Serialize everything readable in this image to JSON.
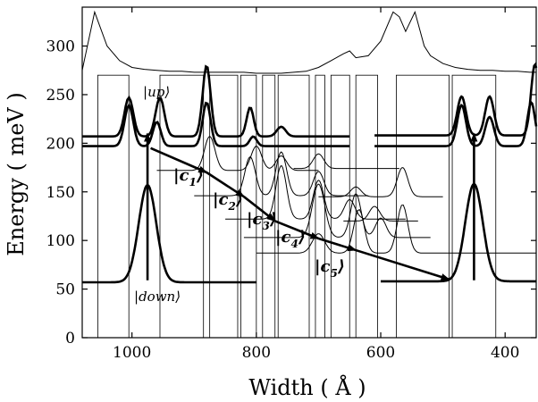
{
  "chart_data": {
    "type": "line",
    "title": "",
    "xlabel": "Width ( Å )",
    "ylabel": "Energy ( meV )",
    "xlim": [
      1080,
      350
    ],
    "ylim": [
      0,
      340
    ],
    "x_reversed": true,
    "xticks": [
      1000,
      800,
      600,
      400
    ],
    "yticks": [
      0,
      50,
      100,
      150,
      200,
      250,
      300
    ],
    "grid": false,
    "legend": "none",
    "potential_profile": {
      "bottom": 0,
      "top": 270,
      "wells": [
        [
          1055,
          1005
        ],
        [
          955,
          885
        ],
        [
          875,
          830
        ],
        [
          825,
          800
        ],
        [
          790,
          770
        ],
        [
          765,
          715
        ],
        [
          705,
          690
        ],
        [
          680,
          650
        ],
        [
          640,
          605
        ],
        [
          575,
          490
        ],
        [
          485,
          415
        ]
      ]
    },
    "transmission_spectrum": {
      "x": [
        1080,
        1060,
        1040,
        1020,
        1000,
        980,
        960,
        940,
        920,
        900,
        880,
        860,
        840,
        820,
        800,
        780,
        760,
        740,
        720,
        700,
        680,
        660,
        650,
        640,
        620,
        600,
        580,
        570,
        560,
        545,
        530,
        520,
        500,
        480,
        460,
        440,
        420,
        400,
        380,
        360,
        350
      ],
      "y": [
        275,
        335,
        300,
        285,
        278,
        276,
        275,
        274,
        274,
        273,
        273,
        273,
        273,
        273,
        272,
        272,
        272,
        273,
        274,
        278,
        285,
        292,
        295,
        288,
        290,
        305,
        335,
        330,
        315,
        335,
        300,
        290,
        282,
        278,
        276,
        275,
        275,
        274,
        274,
        273,
        273
      ]
    },
    "levels": [
      {
        "name": "down",
        "label": "|down⟩",
        "energy": 57,
        "x_center": 975,
        "x_range": [
          1080,
          800
        ],
        "peaks": [
          [
            975,
            100,
            20
          ]
        ]
      },
      {
        "name": "up",
        "label": "|up⟩",
        "energy": 207,
        "x_range": [
          1080,
          650
        ],
        "peaks": [
          [
            1005,
            40,
            10
          ],
          [
            955,
            40,
            10
          ],
          [
            880,
            73,
            9
          ],
          [
            810,
            30,
            8
          ],
          [
            760,
            10,
            10
          ]
        ]
      },
      {
        "name": "up2",
        "energy": 197,
        "x_range": [
          1080,
          650
        ],
        "peaks": [
          [
            1005,
            42,
            10
          ],
          [
            960,
            25,
            9
          ],
          [
            880,
            45,
            9
          ],
          [
            805,
            10,
            8
          ]
        ]
      },
      {
        "name": "right_up",
        "energy": 208,
        "x_range": [
          610,
          350
        ],
        "peaks": [
          [
            470,
            40,
            10
          ],
          [
            425,
            40,
            10
          ],
          [
            352,
            73,
            9
          ]
        ]
      },
      {
        "name": "right_up2",
        "energy": 197,
        "x_range": [
          610,
          350
        ],
        "peaks": [
          [
            470,
            42,
            10
          ],
          [
            425,
            30,
            10
          ],
          [
            358,
            45,
            9
          ]
        ]
      },
      {
        "name": "right_down",
        "energy": 58,
        "x_center": 450,
        "x_range": [
          600,
          350
        ],
        "peaks": [
          [
            450,
            100,
            20
          ]
        ]
      },
      {
        "name": "c1",
        "label": "|c1⟩",
        "energy": 172,
        "x_range": [
          960,
          700
        ],
        "peaks": [
          [
            875,
            35,
            12
          ],
          [
            800,
            25,
            12
          ],
          [
            760,
            15,
            12
          ]
        ]
      },
      {
        "name": "c2",
        "label": "|c2⟩",
        "energy": 146,
        "x_range": [
          900,
          620
        ],
        "peaks": [
          [
            810,
            40,
            12
          ],
          [
            760,
            45,
            12
          ],
          [
            700,
            25,
            12
          ]
        ]
      },
      {
        "name": "c3",
        "label": "|c3⟩",
        "energy": 122,
        "x_range": [
          850,
          560
        ],
        "peaks": [
          [
            760,
            55,
            12
          ],
          [
            700,
            40,
            12
          ],
          [
            650,
            20,
            12
          ]
        ]
      },
      {
        "name": "c4",
        "label": "|c4⟩",
        "energy": 103,
        "x_range": [
          820,
          520
        ],
        "peaks": [
          [
            700,
            55,
            14
          ],
          [
            640,
            45,
            12
          ],
          [
            600,
            20,
            12
          ]
        ]
      },
      {
        "name": "c5",
        "label": "|c5⟩",
        "energy": 87,
        "x_range": [
          800,
          350
        ],
        "peaks": [
          [
            700,
            20,
            14
          ],
          [
            635,
            45,
            12
          ],
          [
            565,
            50,
            12
          ]
        ]
      },
      {
        "name": "extra1",
        "energy": 174,
        "x_range": [
          740,
          570
        ],
        "peaks": [
          [
            700,
            15,
            12
          ]
        ]
      },
      {
        "name": "extra2",
        "energy": 145,
        "x_range": [
          700,
          500
        ],
        "peaks": [
          [
            640,
            10,
            12
          ],
          [
            565,
            30,
            12
          ]
        ]
      },
      {
        "name": "extra3",
        "energy": 120,
        "x_range": [
          660,
          540
        ],
        "peaks": [
          [
            610,
            15,
            12
          ]
        ]
      }
    ],
    "arrows": [
      {
        "from": [
          975,
          59
        ],
        "to": [
          975,
          210
        ]
      },
      {
        "from": [
          970,
          195
        ],
        "to": [
          880,
          170
        ]
      },
      {
        "from": [
          880,
          170
        ],
        "to": [
          820,
          145
        ]
      },
      {
        "from": [
          820,
          145
        ],
        "to": [
          770,
          120
        ]
      },
      {
        "from": [
          770,
          120
        ],
        "to": [
          700,
          102
        ]
      },
      {
        "from": [
          700,
          102
        ],
        "to": [
          640,
          90
        ]
      },
      {
        "from": [
          640,
          90
        ],
        "to": [
          490,
          60
        ]
      },
      {
        "from": [
          450,
          59
        ],
        "to": [
          450,
          210
        ]
      }
    ]
  }
}
